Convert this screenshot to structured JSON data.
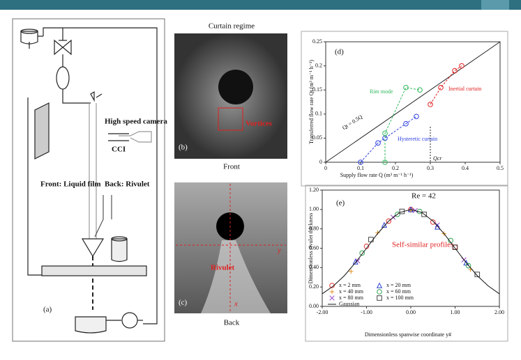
{
  "figure": {
    "panel_a": {
      "label": "(a)",
      "camera": "High speed camera",
      "cci": "CCI",
      "front": "Front: Liquid film",
      "back": "Back: Rivulet"
    },
    "panel_b": {
      "title": "Curtain regime",
      "label": "(b)",
      "vortices": "Vortices",
      "caption": "Front"
    },
    "panel_c": {
      "label": "(c)",
      "rivulet": "Rivulet",
      "y_axis": "y",
      "x_axis": "x",
      "caption": "Back"
    }
  },
  "chart_data": [
    {
      "type": "scatter",
      "title": "(d)",
      "x_label": "Supply flow rate Q (m³ m⁻¹ h⁻¹)",
      "y_label": "Transferred flow rate Qt (m³ m⁻¹ h⁻¹)",
      "annotations": [
        "Rim mode",
        "Inertial curtain",
        "Hysteretic curtain",
        "Qt = 0.5Q",
        "Qcr"
      ],
      "xlim": [
        0,
        0.5
      ],
      "ylim": [
        0,
        0.25
      ],
      "xticks": [
        0,
        0.1,
        0.2,
        0.3,
        0.4,
        0.5
      ],
      "yticks": [
        0,
        0.05,
        0.1,
        0.15,
        0.2,
        0.25
      ],
      "grid": false,
      "legend": false,
      "series": [
        {
          "color": "#222222",
          "marker": "none",
          "x": [
            0,
            0.5
          ],
          "values": [
            0,
            0.25
          ]
        },
        {
          "color": "#2b3fe0",
          "marker": "circle",
          "connect": true,
          "x": [
            0.1,
            0.15,
            0.17,
            0.23,
            0.26
          ],
          "values": [
            0,
            0.04,
            0.05,
            0.08,
            0.095
          ]
        },
        {
          "color": "#e02020",
          "marker": "circle",
          "connect": true,
          "x": [
            0.3,
            0.33,
            0.37,
            0.39
          ],
          "values": [
            0.12,
            0.155,
            0.19,
            0.2
          ]
        },
        {
          "color": "#2eb85c",
          "marker": "circle",
          "connect": true,
          "x": [
            0.17,
            0.17,
            0.23,
            0.27
          ],
          "values": [
            0,
            0.06,
            0.155,
            0.15
          ]
        }
      ]
    },
    {
      "type": "scatter",
      "title": "(e)",
      "x_label": "Dimensionless spanwise coordinate y#",
      "y_label": "Dimensionless rivulet thickness",
      "annotations": [
        "Re = 42",
        "Self-similar profiles"
      ],
      "xlim": [
        -2,
        2
      ],
      "ylim": [
        0,
        1.2
      ],
      "xticks": [
        {
          "value": -2,
          "label": "-2.00"
        },
        {
          "value": -1,
          "label": "-1.00"
        },
        {
          "value": 0,
          "label": "0.00"
        },
        {
          "value": 1,
          "label": "1.00"
        },
        {
          "value": 2,
          "label": "2.00"
        }
      ],
      "yticks": [
        {
          "value": 0,
          "label": "0.00"
        },
        {
          "value": 0.2,
          "label": "0.20"
        },
        {
          "value": 0.4,
          "label": "0.40"
        },
        {
          "value": 0.6,
          "label": "0.60"
        },
        {
          "value": 0.8,
          "label": "0.80"
        },
        {
          "value": 1,
          "label": "1.00"
        },
        {
          "value": 1.2,
          "label": "1.20"
        }
      ],
      "grid": false,
      "legend": true,
      "series": [
        {
          "name": "x = 2 mm",
          "color": "#e03030",
          "marker": "circle",
          "x": [
            -1,
            -0.5,
            0,
            0.5,
            1
          ],
          "values": [
            0.62,
            0.88,
            1,
            0.87,
            0.61
          ]
        },
        {
          "name": "x = 40 mm",
          "color": "#e09020",
          "marker": "plus",
          "x": [
            -1.35,
            -0.75,
            0,
            0.75,
            1.35
          ],
          "values": [
            0.36,
            0.76,
            0.99,
            0.75,
            0.38
          ]
        },
        {
          "name": "x = 80 mm",
          "color": "#9040c0",
          "marker": "cross",
          "x": [
            -1.2,
            -0.4,
            0.1,
            0.6,
            1.2
          ],
          "values": [
            0.47,
            0.92,
            0.99,
            0.84,
            0.48
          ]
        },
        {
          "name": "x = 20 mm",
          "color": "#2a40d0",
          "marker": "triangle",
          "x": [
            -1.25,
            -0.6,
            0,
            0.6,
            1.25
          ],
          "values": [
            0.46,
            0.84,
            1,
            0.82,
            0.45
          ]
        },
        {
          "name": "x = 60 mm",
          "color": "#30a050",
          "marker": "circle",
          "x": [
            -1.1,
            -0.3,
            0.2,
            0.9,
            1.3
          ],
          "values": [
            0.55,
            0.95,
            0.98,
            0.68,
            0.42
          ]
        },
        {
          "name": "x = 100 mm",
          "color": "#444444",
          "marker": "square",
          "x": [
            -0.9,
            -0.2,
            0.3,
            1,
            1.5
          ],
          "values": [
            0.69,
            0.98,
            0.95,
            0.61,
            0.33
          ]
        },
        {
          "name": "Gaussian",
          "color": "#111111",
          "marker": "none",
          "x": [
            -2,
            -1.75,
            -1.5,
            -1.25,
            -1,
            -0.75,
            -0.5,
            -0.25,
            0,
            0.25,
            0.5,
            0.75,
            1,
            1.25,
            1.5,
            1.75,
            2
          ],
          "values": [
            0.13,
            0.21,
            0.317,
            0.451,
            0.6,
            0.751,
            0.88,
            0.969,
            1,
            0.969,
            0.88,
            0.751,
            0.6,
            0.451,
            0.317,
            0.21,
            0.13
          ]
        }
      ]
    }
  ]
}
